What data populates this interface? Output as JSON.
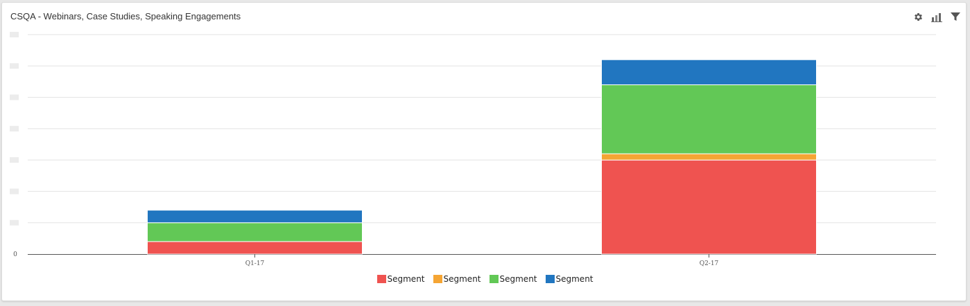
{
  "panel": {
    "title": "CSQA - Webinars, Case Studies, Speaking Engagements"
  },
  "toolbar": {
    "settings_icon": "gear-icon",
    "chart_type_icon": "bar-chart-icon",
    "filter_icon": "filter-icon"
  },
  "chart_data": {
    "type": "bar",
    "stacked": true,
    "categories": [
      "Q1-17",
      "Q2-17"
    ],
    "y_tick_labels": [
      "0"
    ],
    "ylim": [
      0,
      7
    ],
    "grid": true,
    "legend_position": "bottom",
    "series": [
      {
        "name": "Segment",
        "color": "#ef5350",
        "values": [
          0.4,
          3.0
        ]
      },
      {
        "name": "Segment",
        "color": "#f5a534",
        "values": [
          0,
          0.2
        ]
      },
      {
        "name": "Segment",
        "color": "#62c856",
        "values": [
          0.6,
          2.2
        ]
      },
      {
        "name": "Segment",
        "color": "#2176c0",
        "values": [
          0.4,
          0.8
        ]
      }
    ]
  }
}
